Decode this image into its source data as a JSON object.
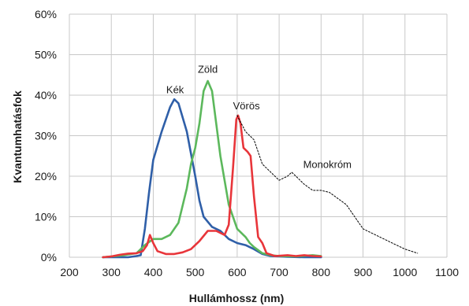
{
  "chart_data": {
    "type": "line",
    "title": "",
    "xlabel": "Hullámhossz (nm)",
    "ylabel": "Kvantumhatásfok",
    "xlim": [
      200,
      1100
    ],
    "ylim": [
      0,
      60
    ],
    "x_ticks": [
      200,
      300,
      400,
      500,
      600,
      700,
      800,
      900,
      1000,
      1100
    ],
    "y_ticks": [
      0,
      10,
      20,
      30,
      40,
      50,
      60
    ],
    "y_tick_labels": [
      "0%",
      "10%",
      "20%",
      "30%",
      "40%",
      "50%",
      "60%"
    ],
    "grid": true,
    "legend": "none",
    "series": [
      {
        "name": "Kék",
        "color": "#2f5fa8",
        "style": "solid",
        "points": [
          [
            280,
            0
          ],
          [
            300,
            0
          ],
          [
            340,
            0
          ],
          [
            360,
            0.3
          ],
          [
            370,
            0.5
          ],
          [
            380,
            7
          ],
          [
            390,
            16
          ],
          [
            400,
            24
          ],
          [
            420,
            31
          ],
          [
            440,
            37
          ],
          [
            450,
            39
          ],
          [
            460,
            38
          ],
          [
            480,
            31
          ],
          [
            500,
            20
          ],
          [
            510,
            14
          ],
          [
            520,
            10
          ],
          [
            540,
            7.5
          ],
          [
            560,
            6.5
          ],
          [
            580,
            4.5
          ],
          [
            600,
            3.5
          ],
          [
            620,
            3
          ],
          [
            640,
            2
          ],
          [
            660,
            0.8
          ],
          [
            680,
            0.3
          ],
          [
            700,
            0.2
          ],
          [
            720,
            0.1
          ],
          [
            760,
            0
          ],
          [
            800,
            0
          ]
        ]
      },
      {
        "name": "Zöld",
        "color": "#5cb85c",
        "style": "solid",
        "points": [
          [
            280,
            0
          ],
          [
            330,
            0.5
          ],
          [
            360,
            1
          ],
          [
            380,
            3
          ],
          [
            400,
            4.5
          ],
          [
            420,
            4.5
          ],
          [
            440,
            5.5
          ],
          [
            460,
            8.5
          ],
          [
            480,
            17
          ],
          [
            490,
            23
          ],
          [
            500,
            27
          ],
          [
            510,
            33
          ],
          [
            520,
            41
          ],
          [
            530,
            43.5
          ],
          [
            540,
            41
          ],
          [
            550,
            33
          ],
          [
            560,
            25
          ],
          [
            580,
            13
          ],
          [
            600,
            7
          ],
          [
            620,
            5
          ],
          [
            630,
            3.5
          ],
          [
            640,
            2.5
          ],
          [
            660,
            1
          ],
          [
            680,
            0.5
          ],
          [
            700,
            0.3
          ],
          [
            740,
            0.2
          ],
          [
            780,
            0.5
          ],
          [
            800,
            0.3
          ]
        ]
      },
      {
        "name": "Vörös",
        "color": "#e8353a",
        "style": "solid",
        "points": [
          [
            280,
            0
          ],
          [
            300,
            0.2
          ],
          [
            320,
            0.6
          ],
          [
            340,
            0.9
          ],
          [
            360,
            1
          ],
          [
            375,
            1.5
          ],
          [
            385,
            3
          ],
          [
            392,
            5.5
          ],
          [
            400,
            3.5
          ],
          [
            410,
            1.5
          ],
          [
            430,
            0.8
          ],
          [
            450,
            0.8
          ],
          [
            470,
            1.2
          ],
          [
            490,
            2
          ],
          [
            510,
            4
          ],
          [
            530,
            6.5
          ],
          [
            550,
            6.5
          ],
          [
            570,
            5.5
          ],
          [
            580,
            8
          ],
          [
            590,
            22
          ],
          [
            598,
            34
          ],
          [
            602,
            35
          ],
          [
            608,
            33
          ],
          [
            615,
            27
          ],
          [
            625,
            26
          ],
          [
            632,
            25
          ],
          [
            640,
            15
          ],
          [
            650,
            5
          ],
          [
            660,
            3.5
          ],
          [
            670,
            1
          ],
          [
            690,
            0.3
          ],
          [
            720,
            0.5
          ],
          [
            740,
            0.3
          ],
          [
            760,
            0.5
          ],
          [
            780,
            0.3
          ],
          [
            800,
            0.2
          ]
        ]
      },
      {
        "name": "Monokróm",
        "color": "#000000",
        "style": "dotted",
        "points": [
          [
            600,
            35
          ],
          [
            620,
            31
          ],
          [
            640,
            29
          ],
          [
            660,
            23
          ],
          [
            680,
            21
          ],
          [
            700,
            19
          ],
          [
            720,
            20
          ],
          [
            730,
            21
          ],
          [
            760,
            18
          ],
          [
            780,
            16.5
          ],
          [
            800,
            16.5
          ],
          [
            820,
            16
          ],
          [
            860,
            13
          ],
          [
            900,
            7
          ],
          [
            940,
            5
          ],
          [
            980,
            3
          ],
          [
            1000,
            2
          ],
          [
            1030,
            1
          ]
        ]
      }
    ],
    "annotations": [
      {
        "text": "Kék",
        "x": 452,
        "y": 40.5
      },
      {
        "text": "Zöld",
        "x": 530,
        "y": 45.5
      },
      {
        "text": "Vörös",
        "x": 622,
        "y": 36.5
      },
      {
        "text": "Monokróm",
        "x": 815,
        "y": 22
      }
    ]
  }
}
